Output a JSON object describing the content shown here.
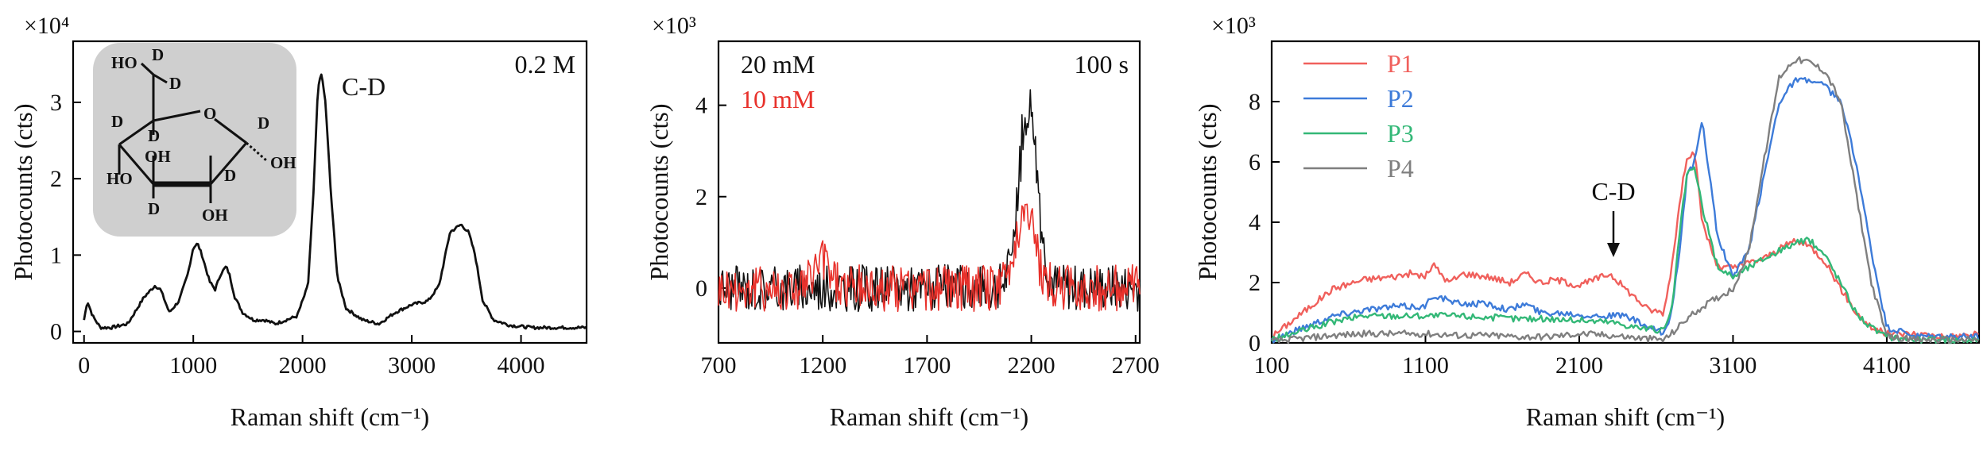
{
  "colors": {
    "black": "#111111",
    "red": "#e8312b",
    "red_light": "#f0605c",
    "blue": "#3d7bd9",
    "green": "#33b877",
    "gray": "#7f7f7f",
    "inset_bg": "#cfcfcf",
    "label_red": "#e32b22"
  },
  "chart_data": [
    {
      "type": "line",
      "xlabel": "Raman shift (cm⁻¹)",
      "ylabel": "Photocounts (cts)",
      "y_multiplier_label": "×10⁴",
      "xlim": [
        -100,
        4600
      ],
      "ylim": [
        -0.15,
        3.8
      ],
      "xticks": [
        0,
        1000,
        2000,
        3000,
        4000
      ],
      "yticks": [
        0,
        1,
        2,
        3
      ],
      "annotations": [
        "0.2 M",
        "C-D"
      ],
      "inset": {
        "description": "deuterated glucose structure",
        "atom_labels": [
          "HO",
          "OH",
          "OH",
          "OH",
          "HO",
          "O"
        ],
        "d_labels": [
          "D",
          "D",
          "D",
          "D",
          "D",
          "D",
          "D"
        ]
      },
      "series": [
        {
          "color": "#111111",
          "x": [
            0,
            30,
            80,
            150,
            250,
            400,
            550,
            650,
            700,
            780,
            870,
            950,
            1000,
            1040,
            1080,
            1150,
            1200,
            1250,
            1300,
            1330,
            1380,
            1450,
            1550,
            1650,
            1750,
            1850,
            1950,
            2050,
            2100,
            2140,
            2170,
            2210,
            2260,
            2320,
            2400,
            2550,
            2700,
            2850,
            3000,
            3150,
            3250,
            3350,
            3450,
            3520,
            3580,
            3650,
            3750,
            3900,
            4100,
            4300,
            4600
          ],
          "y": [
            0.15,
            0.4,
            0.2,
            0.05,
            0.05,
            0.1,
            0.45,
            0.6,
            0.55,
            0.25,
            0.4,
            0.75,
            1.1,
            1.15,
            1.0,
            0.65,
            0.55,
            0.75,
            0.85,
            0.75,
            0.45,
            0.25,
            0.15,
            0.15,
            0.1,
            0.15,
            0.2,
            0.6,
            1.8,
            3.15,
            3.4,
            3.0,
            1.8,
            0.7,
            0.3,
            0.15,
            0.1,
            0.25,
            0.35,
            0.4,
            0.6,
            1.3,
            1.4,
            1.3,
            1.0,
            0.4,
            0.15,
            0.08,
            0.05,
            0.05,
            0.05
          ]
        }
      ]
    },
    {
      "type": "line",
      "xlabel": "Raman shift (cm⁻¹)",
      "ylabel": "Photocounts (cts)",
      "y_multiplier_label": "×10³",
      "xlim": [
        700,
        2720
      ],
      "ylim": [
        -1.2,
        5.4
      ],
      "xticks": [
        700,
        1200,
        1700,
        2200,
        2700
      ],
      "yticks": [
        0,
        2,
        4
      ],
      "annotations": [
        "100 s"
      ],
      "series": [
        {
          "name": "20 mM",
          "color": "#111111",
          "noise": 0.32,
          "peak_center": 2185,
          "peak_height": 3.9,
          "peak_width": 45
        },
        {
          "name": "10 mM",
          "color": "#e8312b",
          "noise": 0.32,
          "peak_center": 2170,
          "peak_height": 1.75,
          "peak_width": 45,
          "bump_center": 1200,
          "bump_height": 0.6
        }
      ]
    },
    {
      "type": "line",
      "xlabel": "Raman shift (cm⁻¹)",
      "ylabel": "Photocounts (cts)",
      "y_multiplier_label": "×10³",
      "xlim": [
        100,
        4700
      ],
      "ylim": [
        0,
        10
      ],
      "xticks": [
        100,
        1100,
        2100,
        3100,
        4100
      ],
      "yticks": [
        0,
        2,
        4,
        6,
        8
      ],
      "annotations": [
        "C-D"
      ],
      "series": [
        {
          "name": "P1",
          "color": "#f0605c",
          "x": [
            100,
            300,
            500,
            700,
            900,
            1000,
            1100,
            1150,
            1250,
            1350,
            1500,
            1650,
            1750,
            1850,
            1950,
            2100,
            2200,
            2300,
            2400,
            2550,
            2650,
            2700,
            2750,
            2800,
            2850,
            2900,
            3000,
            3100,
            3300,
            3500,
            3600,
            3700,
            3800,
            3900,
            4000,
            4100,
            4300,
            4500,
            4700
          ],
          "y": [
            0.2,
            1.0,
            1.8,
            2.1,
            2.2,
            2.3,
            2.2,
            2.6,
            2.0,
            2.3,
            2.2,
            2.0,
            2.3,
            2.0,
            2.1,
            1.9,
            2.1,
            2.3,
            1.8,
            1.1,
            1.0,
            2.5,
            4.5,
            6.2,
            6.3,
            4.0,
            2.5,
            2.5,
            2.8,
            3.4,
            3.2,
            2.7,
            1.8,
            1.0,
            0.5,
            0.3,
            0.3,
            0.2,
            0.3
          ]
        },
        {
          "name": "P2",
          "color": "#3d7bd9",
          "x": [
            100,
            300,
            500,
            700,
            900,
            1100,
            1150,
            1300,
            1500,
            1650,
            1750,
            1850,
            2000,
            2200,
            2400,
            2550,
            2650,
            2700,
            2750,
            2800,
            2850,
            2900,
            2950,
            3000,
            3100,
            3200,
            3300,
            3400,
            3500,
            3600,
            3700,
            3800,
            3900,
            4000,
            4100,
            4300,
            4500,
            4700
          ],
          "y": [
            0.1,
            0.5,
            0.9,
            1.1,
            1.2,
            1.2,
            1.6,
            1.3,
            1.3,
            1.1,
            1.3,
            1.0,
            1.0,
            0.9,
            0.9,
            0.5,
            0.3,
            1.0,
            3.0,
            5.5,
            6.0,
            7.3,
            5.5,
            3.5,
            2.2,
            3.0,
            5.5,
            8.0,
            8.7,
            8.7,
            8.5,
            8.0,
            6.0,
            3.0,
            0.5,
            0.2,
            0.2,
            0.2
          ]
        },
        {
          "name": "P3",
          "color": "#33b877",
          "x": [
            100,
            300,
            500,
            700,
            900,
            1100,
            1300,
            1500,
            1700,
            1900,
            2100,
            2300,
            2500,
            2650,
            2700,
            2750,
            2800,
            2850,
            2900,
            3000,
            3100,
            3300,
            3500,
            3600,
            3700,
            3800,
            3900,
            4000,
            4100,
            4300,
            4500,
            4700
          ],
          "y": [
            0.1,
            0.4,
            0.7,
            0.9,
            0.9,
            0.9,
            0.9,
            0.85,
            0.8,
            0.8,
            0.75,
            0.7,
            0.5,
            0.4,
            1.0,
            3.5,
            5.6,
            5.8,
            4.5,
            2.5,
            2.2,
            2.8,
            3.3,
            3.4,
            2.9,
            2.0,
            1.0,
            0.5,
            0.2,
            0.1,
            0.1,
            0.1
          ]
        },
        {
          "name": "P4",
          "color": "#7f7f7f",
          "x": [
            100,
            300,
            500,
            700,
            900,
            1100,
            1300,
            1500,
            1700,
            1900,
            2100,
            2300,
            2500,
            2650,
            2700,
            2800,
            2900,
            3000,
            3100,
            3200,
            3300,
            3400,
            3500,
            3600,
            3700,
            3800,
            3900,
            4000,
            4100,
            4300,
            4500,
            4700
          ],
          "y": [
            0.05,
            0.15,
            0.25,
            0.3,
            0.3,
            0.3,
            0.25,
            0.25,
            0.2,
            0.2,
            0.3,
            0.25,
            0.15,
            0.1,
            0.3,
            0.8,
            1.2,
            1.5,
            1.8,
            3.0,
            6.0,
            8.8,
            9.4,
            9.3,
            9.0,
            8.0,
            5.0,
            2.0,
            0.2,
            0.1,
            0.1,
            0.1
          ]
        }
      ]
    }
  ]
}
